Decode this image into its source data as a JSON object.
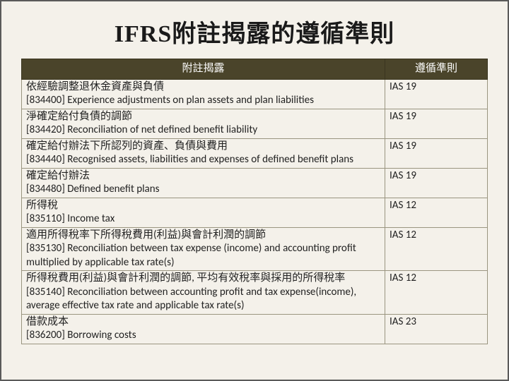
{
  "title": "IFRS附註揭露的遵循準則",
  "headers": {
    "left": "附註揭露",
    "right": "遵循準則"
  },
  "rows": [
    {
      "disclosure": "依經驗調整退休金資產與負債\n[834400] Experience adjustments on plan assets and plan liabilities",
      "standard": "IAS 19"
    },
    {
      "disclosure": "淨確定給付負債的調節\n[834420] Reconciliation of net defined benefit liability",
      "standard": "IAS 19"
    },
    {
      "disclosure": "確定給付辦法下所認列的資產、負債與費用\n[834440] Recognised assets, liabilities and expenses of defined benefit plans",
      "standard": "IAS 19"
    },
    {
      "disclosure": "確定給付辦法\n[834480] Defined benefit plans",
      "standard": "IAS 19"
    },
    {
      "disclosure": "所得稅\n[835110] Income tax",
      "standard": "IAS 12"
    },
    {
      "disclosure": "適用所得稅率下所得稅費用(利益)與會計利潤的調節\n[835130] Reconciliation between tax expense (income) and accounting profit multiplied by applicable tax rate(s)",
      "standard": "IAS 12"
    },
    {
      "disclosure": "所得稅費用(利益)與會計利潤的調節, 平均有效稅率與採用的所得稅率\n[835140] Reconciliation between accounting profit and tax expense(income), average effective tax rate and applicable tax rate(s)",
      "standard": "IAS 12"
    },
    {
      "disclosure": "借款成本\n[836200] Borrowing costs",
      "standard": "IAS 23"
    }
  ],
  "style": {
    "header_bg": "#4a442a",
    "header_fg": "#ffffff",
    "body_bg": "#f4f1ea",
    "border_color": "#9a9580",
    "title_fontsize": 34,
    "body_fontsize": 15
  }
}
